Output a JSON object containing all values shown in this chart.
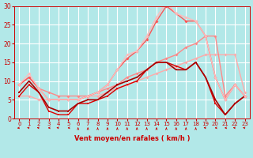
{
  "background_color": "#b2e8e8",
  "grid_color": "#ffffff",
  "xlabel": "Vent moyen/en rafales ( km/h )",
  "xlim": [
    -0.5,
    23.5
  ],
  "ylim": [
    0,
    30
  ],
  "xticks": [
    0,
    1,
    2,
    3,
    4,
    5,
    6,
    7,
    8,
    9,
    10,
    11,
    12,
    13,
    14,
    15,
    16,
    17,
    18,
    19,
    20,
    21,
    22,
    23
  ],
  "yticks": [
    0,
    5,
    10,
    15,
    20,
    25,
    30
  ],
  "series": [
    {
      "x": [
        0,
        1,
        2,
        3,
        4,
        5,
        6,
        7,
        8,
        9,
        10,
        11,
        12,
        13,
        14,
        15,
        16,
        17,
        18,
        19,
        20,
        21,
        22,
        23
      ],
      "y": [
        6,
        6,
        5,
        5,
        5,
        5,
        5,
        6,
        6,
        7,
        8,
        9,
        10,
        11,
        12,
        13,
        14,
        15,
        16,
        17,
        17,
        17,
        17,
        7
      ],
      "color": "#ffaaaa",
      "lw": 1.0,
      "marker": "D",
      "ms": 2.0
    },
    {
      "x": [
        0,
        1,
        2,
        3,
        4,
        5,
        6,
        7,
        8,
        9,
        10,
        11,
        12,
        13,
        14,
        15,
        16,
        17,
        18,
        19,
        20,
        21,
        22,
        23
      ],
      "y": [
        9,
        11,
        8,
        7,
        6,
        6,
        6,
        6,
        7,
        8,
        9,
        11,
        12,
        13,
        15,
        16,
        17,
        19,
        20,
        22,
        22,
        6,
        9,
        6
      ],
      "color": "#ff8888",
      "lw": 1.0,
      "marker": "D",
      "ms": 2.0
    },
    {
      "x": [
        0,
        1,
        2,
        3,
        4,
        5,
        6,
        7,
        8,
        9,
        10,
        11,
        12,
        13,
        14,
        15,
        16,
        17,
        18,
        19,
        20,
        21,
        22,
        23
      ],
      "y": [
        6,
        9,
        7,
        2,
        1,
        1,
        4,
        4,
        5,
        6,
        8,
        9,
        10,
        13,
        15,
        15,
        14,
        13,
        15,
        11,
        4,
        1,
        4,
        6
      ],
      "color": "#dd0000",
      "lw": 1.0,
      "marker": "s",
      "ms": 2.0
    },
    {
      "x": [
        0,
        1,
        2,
        3,
        4,
        5,
        6,
        7,
        8,
        9,
        10,
        11,
        12,
        13,
        14,
        15,
        16,
        17,
        18,
        19,
        20,
        21,
        22,
        23
      ],
      "y": [
        7,
        10,
        7,
        3,
        2,
        2,
        4,
        5,
        5,
        7,
        9,
        10,
        11,
        13,
        15,
        15,
        13,
        13,
        15,
        11,
        5,
        1,
        4,
        6
      ],
      "color": "#aa0000",
      "lw": 1.2,
      "marker": "s",
      "ms": 2.0
    },
    {
      "x": [
        0,
        1,
        2,
        3,
        4,
        5,
        6,
        7,
        8,
        9,
        10,
        11,
        12,
        13,
        14,
        15,
        16,
        17,
        18,
        19,
        20,
        21,
        22,
        23
      ],
      "y": [
        9,
        11,
        8,
        5,
        5,
        5,
        5,
        6,
        7,
        9,
        13,
        16,
        18,
        21,
        26,
        30,
        28,
        26,
        26,
        22,
        11,
        5,
        9,
        6
      ],
      "color": "#ff5555",
      "lw": 1.0,
      "marker": "D",
      "ms": 2.0
    },
    {
      "x": [
        0,
        1,
        2,
        3,
        4,
        5,
        6,
        7,
        8,
        9,
        10,
        11,
        12,
        13,
        14,
        15,
        16,
        17,
        18,
        19,
        20,
        21,
        22,
        23
      ],
      "y": [
        9,
        12,
        8,
        5,
        5,
        5,
        5,
        6,
        7,
        9,
        13,
        17,
        18,
        22,
        27,
        31,
        28,
        27,
        26,
        22,
        11,
        5,
        9,
        6
      ],
      "color": "#ffbbbb",
      "lw": 1.0,
      "marker": "D",
      "ms": 2.0
    }
  ],
  "tick_color": "#cc0000",
  "label_color": "#cc0000",
  "wind_dirs_deg": [
    225,
    315,
    315,
    270,
    315,
    270,
    0,
    0,
    0,
    0,
    0,
    0,
    0,
    0,
    0,
    0,
    0,
    0,
    0,
    315,
    270,
    270,
    315,
    315
  ]
}
